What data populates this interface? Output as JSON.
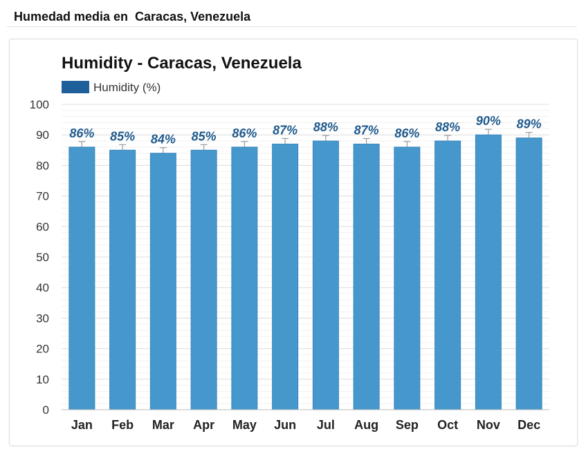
{
  "page": {
    "heading": "Humedad media en  Caracas, Venezuela"
  },
  "colors": {
    "bar_fill": "#4597cc",
    "bar_stroke": "#3a87bd",
    "legend_swatch": "#1f5f9a",
    "data_label": "#1f5a8c",
    "axis_text": "#333333",
    "title_text": "#111111",
    "grid_major": "#dcdcdc",
    "grid_minor": "#f1f1f1",
    "error_bar": "#999999"
  },
  "chart_data": {
    "type": "bar",
    "title": "Humidity - Caracas, Venezuela",
    "legend": [
      {
        "name": "Humidity (%)",
        "position": "top-left"
      }
    ],
    "categories": [
      "Jan",
      "Feb",
      "Mar",
      "Apr",
      "May",
      "Jun",
      "Jul",
      "Aug",
      "Sep",
      "Oct",
      "Nov",
      "Dec"
    ],
    "series": [
      {
        "name": "Humidity (%)",
        "values": [
          86,
          85,
          84,
          85,
          86,
          87,
          88,
          87,
          86,
          88,
          90,
          89
        ]
      }
    ],
    "data_labels": [
      "86%",
      "85%",
      "84%",
      "85%",
      "86%",
      "87%",
      "88%",
      "87%",
      "86%",
      "88%",
      "90%",
      "89%"
    ],
    "ylim": [
      0,
      100
    ],
    "yticks": [
      0,
      10,
      20,
      30,
      40,
      50,
      60,
      70,
      80,
      90,
      100
    ],
    "ytick_labels": [
      "0",
      "10",
      "20",
      "30",
      "40",
      "50",
      "60",
      "70",
      "80",
      "90",
      "100"
    ],
    "xlabel": "",
    "ylabel": "",
    "grid": true
  }
}
